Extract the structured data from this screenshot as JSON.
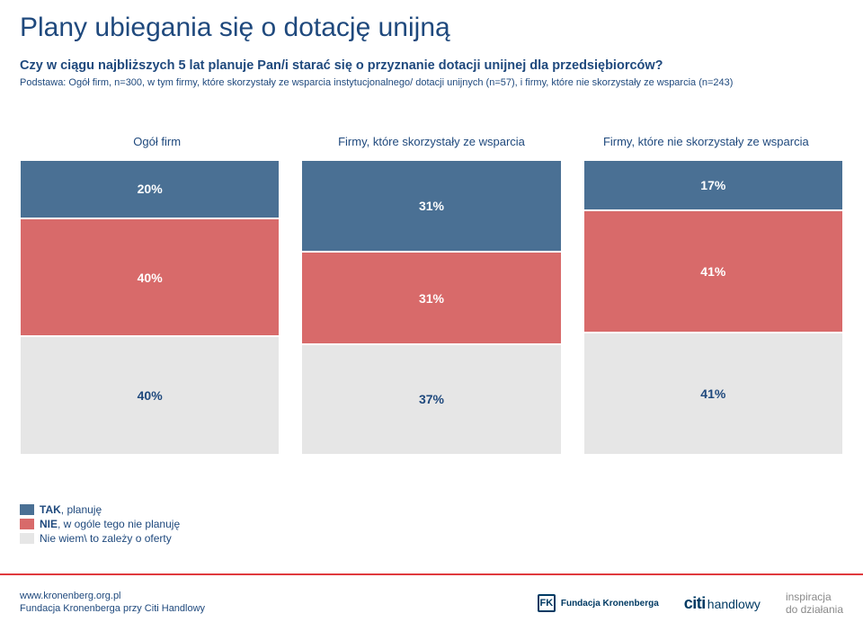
{
  "title": "Plany ubiegania się o dotację unijną",
  "subtitle": "Czy w ciągu najbliższych 5 lat planuje Pan/i starać się o przyznanie dotacji unijnej dla przedsiębiorców?",
  "note": "Podstawa: Ogół firm, n=300, w tym firmy, które skorzystały ze wsparcia instytucjonalnego/ dotacji unijnych (n=57), i firmy, które nie skorzystały ze wsparcia (n=243)",
  "chart": {
    "type": "stacked-bar-100",
    "colors": {
      "top": "#4a7094",
      "mid": "#d86a6a",
      "bot": "#e6e6e6",
      "bot_text": "#1f497d",
      "border": "#ffffff"
    },
    "columns": [
      {
        "header": "Ogół firm",
        "segments": [
          20,
          40,
          40
        ]
      },
      {
        "header": "Firmy, które skorzystały ze wsparcia",
        "segments": [
          31,
          31,
          37
        ]
      },
      {
        "header": "Firmy, które nie skorzystały ze wsparcia",
        "segments": [
          17,
          41,
          41
        ]
      }
    ],
    "legend": [
      {
        "color": "#4a7094",
        "strong": "TAK",
        "rest": ", planuję"
      },
      {
        "color": "#d86a6a",
        "strong": "NIE",
        "rest": ", w ogóle tego nie planuję"
      },
      {
        "color": "#e6e6e6",
        "strong": "",
        "rest": "Nie wiem\\ to zależy o oferty"
      }
    ]
  },
  "footer": {
    "url": "www.kronenberg.org.pl",
    "org": "Fundacja Kronenberga przy Citi Handlowy",
    "fk_brand_top": "Fundacja Kronenberga",
    "citi": "citi",
    "handlowy": " handlowy",
    "tagline_l1": "inspiracja",
    "tagline_l2": "do działania"
  }
}
